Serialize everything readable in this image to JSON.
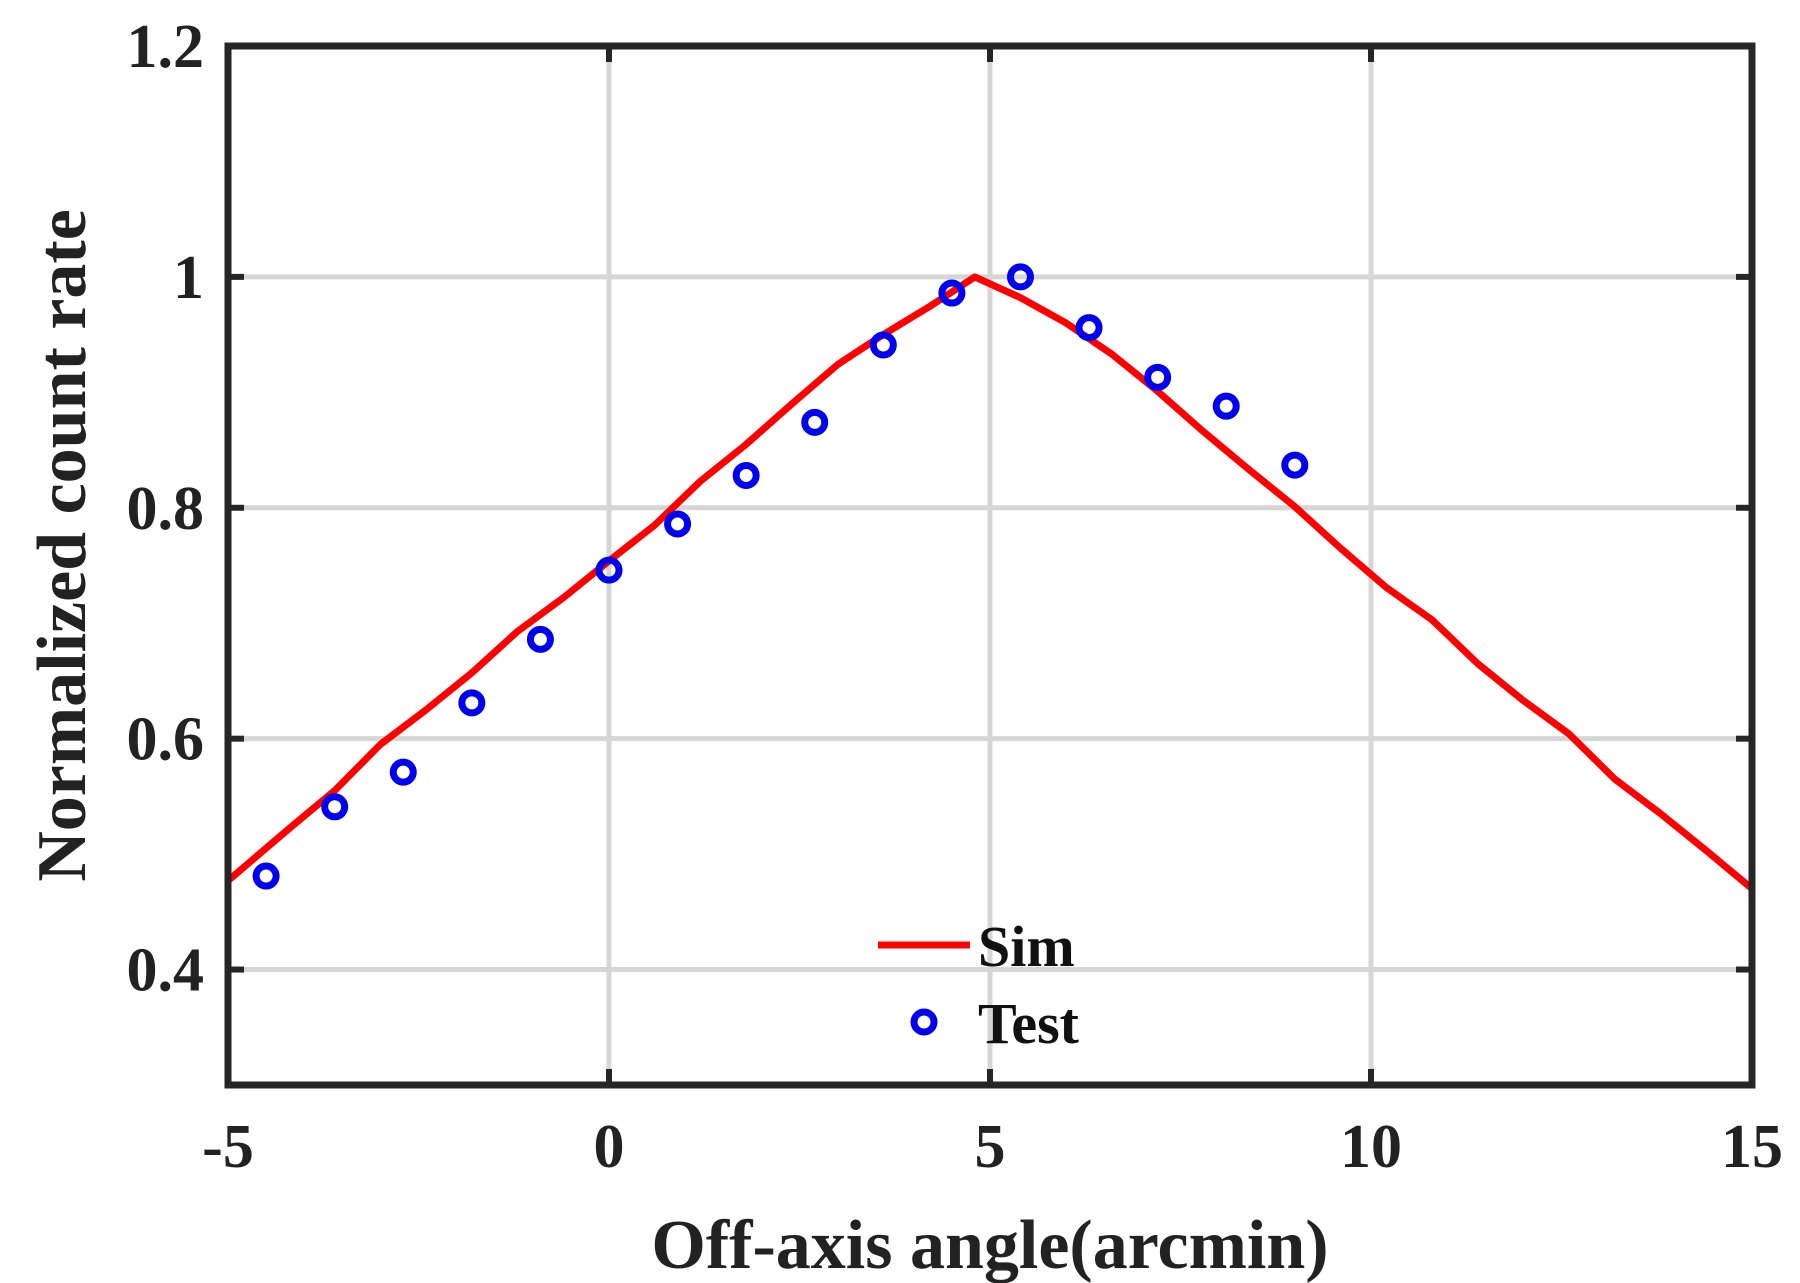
{
  "chart_data": {
    "type": "line",
    "xlabel": "Off-axis angle(arcmin)",
    "ylabel": "Normalized count rate",
    "xlim": [
      -5,
      15
    ],
    "ylim": [
      0.3,
      1.2
    ],
    "x_ticks": [
      -5,
      0,
      5,
      10,
      15
    ],
    "y_ticks": [
      0.4,
      0.6,
      0.8,
      1.0,
      1.2
    ],
    "x_tick_labels": [
      "-5",
      "0",
      "5",
      "10",
      "15"
    ],
    "y_tick_labels": [
      "0.4",
      "0.6",
      "0.8",
      "1",
      "1.2"
    ],
    "grid": true,
    "legend_position": "bottom-center",
    "series": [
      {
        "name": "Sim",
        "kind": "line",
        "color": "#ff0000",
        "x": [
          -5.0,
          -4.2,
          -3.6,
          -3.0,
          -2.4,
          -1.8,
          -1.2,
          -0.6,
          0.0,
          0.6,
          1.2,
          1.8,
          2.4,
          3.0,
          3.6,
          4.2,
          4.8,
          5.4,
          6.0,
          6.6,
          7.2,
          7.8,
          8.4,
          9.0,
          9.6,
          10.2,
          10.8,
          11.4,
          12.0,
          12.6,
          13.2,
          13.8,
          14.4,
          15.0
        ],
        "y": [
          0.477,
          0.522,
          0.555,
          0.595,
          0.625,
          0.657,
          0.693,
          0.722,
          0.754,
          0.785,
          0.823,
          0.855,
          0.89,
          0.924,
          0.95,
          0.974,
          1.0,
          0.982,
          0.96,
          0.933,
          0.901,
          0.866,
          0.833,
          0.801,
          0.765,
          0.731,
          0.703,
          0.665,
          0.633,
          0.604,
          0.565,
          0.535,
          0.503,
          0.47
        ]
      },
      {
        "name": "Test",
        "kind": "scatter",
        "color": "#0000ee",
        "x": [
          -4.5,
          -3.6,
          -2.7,
          -1.8,
          -0.9,
          0.0,
          0.9,
          1.8,
          2.7,
          3.6,
          4.5,
          5.4,
          6.3,
          7.2,
          8.1,
          9.0
        ],
        "y": [
          0.481,
          0.541,
          0.571,
          0.631,
          0.686,
          0.746,
          0.786,
          0.828,
          0.874,
          0.941,
          0.986,
          1.0,
          0.956,
          0.913,
          0.888,
          0.837
        ]
      }
    ]
  }
}
